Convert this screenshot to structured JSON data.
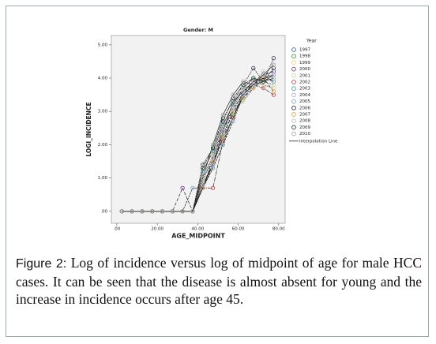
{
  "chart_data": {
    "type": "line",
    "title": "Gender: M",
    "x_label": "AGE_MIDPOINT",
    "y_label": "LOGI_INCIDENCE",
    "legend_title": "Year",
    "legend_line_label": "Interpolation Line",
    "line_color": "#222222",
    "x": [
      2.5,
      7.5,
      12.5,
      17.5,
      22.5,
      27.5,
      32.5,
      37.5,
      42.5,
      47.5,
      52.5,
      57.5,
      62.5,
      67.5,
      72.5,
      77.5
    ],
    "series": [
      {
        "name": "1997",
        "color": "#3a5fc0",
        "values": [
          0,
          0,
          0,
          0,
          0,
          0,
          0,
          0,
          0.7,
          1.4,
          2.2,
          2.8,
          3.5,
          3.8,
          3.9,
          4.1
        ]
      },
      {
        "name": "1998",
        "color": "#2e9b3a",
        "values": [
          0,
          0,
          0,
          0,
          0,
          0,
          0,
          0,
          0.7,
          1.3,
          2.0,
          2.9,
          3.4,
          3.8,
          4.0,
          3.9
        ]
      },
      {
        "name": "1999",
        "color": "#e0d880",
        "values": [
          0,
          0,
          0,
          0,
          0,
          0,
          0,
          0,
          1.0,
          1.5,
          2.3,
          3.0,
          3.6,
          3.9,
          3.8,
          3.7
        ]
      },
      {
        "name": "2000",
        "color": "#7a3a8c",
        "values": [
          0,
          0,
          0,
          0,
          0,
          0,
          0.7,
          0,
          0.7,
          1.6,
          2.4,
          3.1,
          3.5,
          3.9,
          4.1,
          4.2
        ]
      },
      {
        "name": "2001",
        "color": "#c8dc98",
        "values": [
          0,
          0,
          0,
          0,
          0,
          0,
          0,
          0,
          0.9,
          1.7,
          2.5,
          3.0,
          3.3,
          3.7,
          3.9,
          3.8
        ]
      },
      {
        "name": "2002",
        "color": "#d04040",
        "values": [
          0,
          0,
          0,
          0,
          0,
          0,
          0,
          0,
          0.7,
          0.7,
          2.1,
          2.8,
          3.6,
          3.8,
          3.7,
          3.5
        ]
      },
      {
        "name": "2003",
        "color": "#40a0a0",
        "values": [
          0,
          0,
          0,
          0,
          0,
          0,
          0,
          0,
          1.2,
          1.8,
          2.6,
          3.2,
          3.7,
          4.0,
          3.9,
          4.0
        ]
      },
      {
        "name": "2004",
        "color": "#b0b0d0",
        "values": [
          0,
          0,
          0,
          0,
          0,
          0,
          0,
          0,
          0.8,
          1.4,
          2.4,
          3.3,
          3.6,
          3.9,
          4.0,
          4.1
        ]
      },
      {
        "name": "2005",
        "color": "#80a8d8",
        "values": [
          0,
          0,
          0,
          0,
          0,
          0,
          0,
          0.7,
          0.7,
          1.3,
          2.0,
          2.7,
          3.5,
          3.8,
          4.1,
          3.9
        ]
      },
      {
        "name": "2006",
        "color": "#303050",
        "values": [
          0,
          0,
          0,
          0,
          0,
          0,
          0,
          0,
          1.4,
          1.9,
          2.7,
          3.4,
          3.8,
          4.3,
          3.9,
          4.6
        ]
      },
      {
        "name": "2007",
        "color": "#e0a040",
        "values": [
          0,
          0,
          0,
          0,
          0,
          0,
          0,
          0,
          0.7,
          1.5,
          2.2,
          3.0,
          3.4,
          3.7,
          4.0,
          3.6
        ]
      },
      {
        "name": "2008",
        "color": "#c0c0c0",
        "values": [
          0,
          0,
          0,
          0,
          0,
          0,
          0,
          0,
          1.1,
          1.6,
          2.5,
          3.1,
          3.7,
          3.8,
          4.2,
          4.0
        ]
      },
      {
        "name": "2009",
        "color": "#205030",
        "values": [
          0,
          0,
          0,
          0,
          0,
          0,
          0,
          0,
          1.3,
          1.9,
          2.8,
          3.3,
          3.8,
          4.0,
          3.9,
          4.3
        ]
      },
      {
        "name": "2010",
        "color": "#a0a0a0",
        "values": [
          0,
          0,
          0,
          0,
          0,
          0,
          0,
          0,
          1.0,
          2.0,
          2.9,
          3.5,
          3.9,
          3.8,
          4.1,
          4.4
        ]
      }
    ],
    "xlim": [
      -2.7,
      83.2
    ],
    "ylim": [
      -0.36,
      5.28
    ],
    "xticks": [
      {
        "value": 0,
        "label": ".00"
      },
      {
        "value": 20,
        "label": "20.00"
      },
      {
        "value": 40,
        "label": "40.00"
      },
      {
        "value": 60,
        "label": "60.00"
      },
      {
        "value": 80,
        "label": "80.00"
      }
    ],
    "yticks": [
      {
        "value": 0,
        "label": ".00"
      },
      {
        "value": 1,
        "label": "1.00"
      },
      {
        "value": 2,
        "label": "2.00"
      },
      {
        "value": 3,
        "label": "3.00"
      },
      {
        "value": 4,
        "label": "4.00"
      },
      {
        "value": 5,
        "label": "5.00"
      }
    ]
  },
  "caption": {
    "label": "Figure 2:",
    "text": "Log of incidence versus log of midpoint of age for male HCC cases. It can be seen that the disease is almost absent for young and the increase in incidence occurs after age 45."
  }
}
